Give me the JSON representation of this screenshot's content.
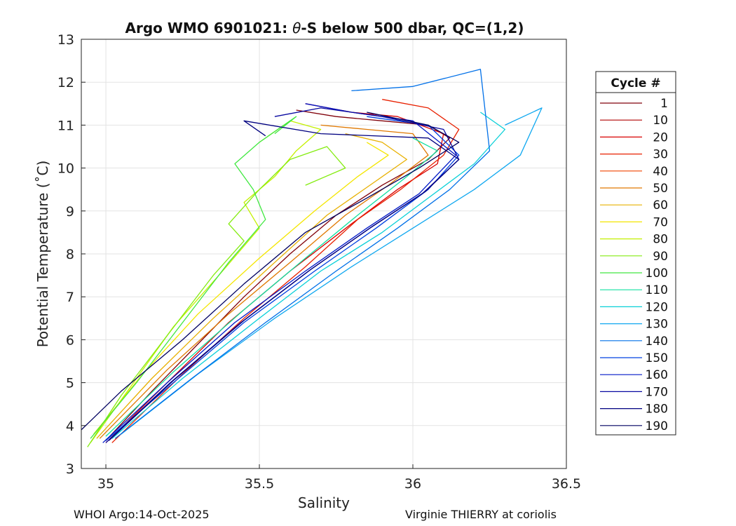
{
  "chart_data": {
    "type": "line",
    "title_prefix": "Argo WMO 6901021: ",
    "title_theta": "θ",
    "title_suffix": "-S below 500 dbar,  QC=(1,2)",
    "xlabel": "Salinity",
    "ylabel": "Potential Temperature (˚C)",
    "xlim": [
      34.92,
      36.5
    ],
    "ylim": [
      3,
      13
    ],
    "xticks": [
      35,
      35.5,
      36,
      36.5
    ],
    "xtick_labels": [
      "35",
      "35.5",
      "36",
      "36.5"
    ],
    "yticks": [
      3,
      4,
      5,
      6,
      7,
      8,
      9,
      10,
      11,
      12,
      13
    ],
    "ytick_labels": [
      "3",
      "4",
      "5",
      "6",
      "7",
      "8",
      "9",
      "10",
      "11",
      "12",
      "13"
    ],
    "grid": true,
    "legend": {
      "title": "Cycle #",
      "placement": "right",
      "entries": [
        {
          "label": "1",
          "color": "#80000a"
        },
        {
          "label": "10",
          "color": "#b00000"
        },
        {
          "label": "20",
          "color": "#d80000"
        },
        {
          "label": "30",
          "color": "#e82000"
        },
        {
          "label": "40",
          "color": "#f04400"
        },
        {
          "label": "50",
          "color": "#e07800"
        },
        {
          "label": "60",
          "color": "#e8b000"
        },
        {
          "label": "70",
          "color": "#f4e600"
        },
        {
          "label": "80",
          "color": "#c4f000"
        },
        {
          "label": "90",
          "color": "#84ec10"
        },
        {
          "label": "100",
          "color": "#40e840"
        },
        {
          "label": "110",
          "color": "#10e0a0"
        },
        {
          "label": "120",
          "color": "#08d0d8"
        },
        {
          "label": "130",
          "color": "#10a8f0"
        },
        {
          "label": "140",
          "color": "#0070e8"
        },
        {
          "label": "150",
          "color": "#0040e0"
        },
        {
          "label": "160",
          "color": "#0018c8"
        },
        {
          "label": "170",
          "color": "#0808a0"
        },
        {
          "label": "180",
          "color": "#000080"
        },
        {
          "label": "190",
          "color": "#000060"
        }
      ]
    },
    "series": [
      {
        "name": "1",
        "color": "#80000a",
        "x": [
          35.0,
          35.15,
          35.3,
          35.45,
          35.6,
          35.75,
          35.9,
          36.05,
          36.12,
          36.05,
          35.9,
          35.75,
          35.62
        ],
        "y": [
          3.65,
          4.8,
          5.9,
          7.0,
          8.0,
          8.9,
          9.6,
          10.2,
          10.7,
          11.0,
          11.1,
          11.2,
          11.35
        ]
      },
      {
        "name": "20",
        "color": "#d80000",
        "x": [
          35.0,
          35.2,
          35.4,
          35.6,
          35.8,
          35.95,
          36.08,
          36.1,
          35.95,
          35.8,
          35.65
        ],
        "y": [
          3.6,
          5.0,
          6.4,
          7.6,
          8.7,
          9.5,
          10.1,
          10.8,
          11.2,
          11.3,
          11.5
        ]
      },
      {
        "name": "30",
        "color": "#e82000",
        "x": [
          35.02,
          35.25,
          35.45,
          35.65,
          35.82,
          35.96,
          36.1,
          36.15,
          36.05,
          35.9
        ],
        "y": [
          3.6,
          5.2,
          6.5,
          7.7,
          8.8,
          9.5,
          10.3,
          10.9,
          11.4,
          11.6
        ]
      },
      {
        "name": "50",
        "color": "#e07800",
        "x": [
          34.98,
          35.2,
          35.4,
          35.6,
          35.78,
          35.92,
          36.05,
          36.0,
          35.85,
          35.7
        ],
        "y": [
          3.7,
          5.3,
          6.6,
          7.8,
          8.9,
          9.6,
          10.3,
          10.8,
          10.9,
          11.0
        ]
      },
      {
        "name": "60",
        "color": "#e8b000",
        "x": [
          34.97,
          35.15,
          35.35,
          35.55,
          35.72,
          35.88,
          35.98,
          35.9,
          35.78
        ],
        "y": [
          3.7,
          5.1,
          6.5,
          7.8,
          8.9,
          9.7,
          10.2,
          10.6,
          10.8
        ]
      },
      {
        "name": "70",
        "color": "#f4e600",
        "x": [
          34.96,
          35.12,
          35.3,
          35.5,
          35.68,
          35.82,
          35.92,
          35.85
        ],
        "y": [
          3.8,
          5.2,
          6.6,
          7.9,
          9.0,
          9.8,
          10.3,
          10.6
        ]
      },
      {
        "name": "80",
        "color": "#c4f000",
        "x": [
          34.95,
          35.08,
          35.22,
          35.38,
          35.5,
          35.45,
          35.55,
          35.62,
          35.7,
          35.6,
          35.5
        ],
        "y": [
          3.6,
          4.9,
          6.3,
          7.6,
          8.6,
          9.2,
          9.8,
          10.4,
          10.9,
          11.1,
          10.6
        ]
      },
      {
        "name": "90",
        "color": "#84ec10",
        "x": [
          34.94,
          35.05,
          35.2,
          35.35,
          35.45,
          35.4,
          35.5,
          35.6,
          35.72,
          35.78,
          35.65
        ],
        "y": [
          3.5,
          4.7,
          6.1,
          7.5,
          8.3,
          8.7,
          9.5,
          10.2,
          10.5,
          10.0,
          9.6
        ]
      },
      {
        "name": "100",
        "color": "#40e840",
        "x": [
          34.95,
          35.1,
          35.25,
          35.4,
          35.52,
          35.48,
          35.42,
          35.5,
          35.58,
          35.62,
          35.55
        ],
        "y": [
          3.7,
          5.0,
          6.4,
          7.8,
          8.8,
          9.5,
          10.1,
          10.6,
          11.0,
          11.2,
          10.8
        ]
      },
      {
        "name": "110",
        "color": "#10e0a0",
        "x": [
          35.0,
          35.22,
          35.45,
          35.65,
          35.82,
          35.98,
          36.08,
          36.0
        ],
        "y": [
          3.75,
          5.25,
          6.7,
          7.9,
          8.9,
          9.8,
          10.4,
          10.7
        ]
      },
      {
        "name": "120",
        "color": "#08d0d8",
        "x": [
          35.02,
          35.25,
          35.5,
          35.7,
          35.9,
          36.05,
          36.2,
          36.3,
          36.22
        ],
        "y": [
          3.7,
          5.1,
          6.5,
          7.6,
          8.5,
          9.3,
          10.1,
          10.9,
          11.3
        ]
      },
      {
        "name": "130",
        "color": "#10a8f0",
        "x": [
          35.05,
          35.3,
          35.55,
          35.8,
          36.0,
          36.2,
          36.35,
          36.42,
          36.3
        ],
        "y": [
          3.8,
          5.2,
          6.5,
          7.7,
          8.6,
          9.5,
          10.3,
          11.4,
          11.0
        ]
      },
      {
        "name": "140",
        "color": "#0070e8",
        "x": [
          35.03,
          35.28,
          35.52,
          35.75,
          35.95,
          36.12,
          36.25,
          36.22,
          36.0,
          35.8
        ],
        "y": [
          3.7,
          5.1,
          6.4,
          7.6,
          8.6,
          9.5,
          10.4,
          12.3,
          11.9,
          11.8
        ]
      },
      {
        "name": "150",
        "color": "#0040e0",
        "x": [
          35.0,
          35.22,
          35.45,
          35.68,
          35.88,
          36.05,
          36.15,
          36.05,
          35.85
        ],
        "y": [
          3.65,
          5.0,
          6.4,
          7.6,
          8.6,
          9.5,
          10.3,
          11.0,
          11.2
        ]
      },
      {
        "name": "160",
        "color": "#0018c8",
        "x": [
          34.99,
          35.2,
          35.42,
          35.65,
          35.85,
          36.02,
          36.14,
          36.0,
          35.8,
          35.65
        ],
        "y": [
          3.6,
          5.0,
          6.4,
          7.6,
          8.6,
          9.4,
          10.3,
          11.1,
          11.3,
          11.5
        ]
      },
      {
        "name": "170",
        "color": "#0808a0",
        "x": [
          35.0,
          35.21,
          35.44,
          35.66,
          35.86,
          36.03,
          36.15,
          36.1,
          35.9,
          35.7,
          35.55
        ],
        "y": [
          3.6,
          5.0,
          6.4,
          7.6,
          8.6,
          9.4,
          10.2,
          10.9,
          11.2,
          11.4,
          11.2
        ]
      },
      {
        "name": "180",
        "color": "#000080",
        "x": [
          35.01,
          35.22,
          35.45,
          35.67,
          35.87,
          36.04,
          36.15,
          36.05,
          35.7,
          35.45,
          35.52
        ],
        "y": [
          3.65,
          5.05,
          6.45,
          7.65,
          8.65,
          9.45,
          10.2,
          10.7,
          10.8,
          11.1,
          10.75
        ]
      },
      {
        "name": "190",
        "color": "#000060",
        "x": [
          34.92,
          35.05,
          35.25,
          35.45,
          35.65,
          35.85,
          36.02,
          36.15,
          36.05,
          35.85
        ],
        "y": [
          3.9,
          4.8,
          6.0,
          7.3,
          8.5,
          9.3,
          10.0,
          10.6,
          11.0,
          11.3
        ]
      }
    ]
  },
  "footer": {
    "left": "WHOI Argo:14-Oct-2025",
    "right": "Virginie THIERRY at coriolis"
  }
}
